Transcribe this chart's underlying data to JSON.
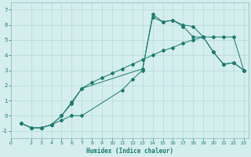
{
  "xlabel": "Humidex (Indice chaleur)",
  "bg_color": "#d4eded",
  "line_color": "#1a7a6e",
  "grid_color": "#b8d8d8",
  "spine_color": "#8ab8b8",
  "ylim": [
    -1.5,
    7.5
  ],
  "xlim": [
    0,
    23.5
  ],
  "yticks": [
    -1,
    0,
    1,
    2,
    3,
    4,
    5,
    6,
    7
  ],
  "xticks": [
    0,
    2,
    3,
    4,
    5,
    6,
    7,
    8,
    9,
    10,
    11,
    12,
    13,
    14,
    15,
    16,
    17,
    18,
    19,
    20,
    21,
    22,
    23
  ],
  "line1_x": [
    1,
    2,
    3,
    4,
    5,
    6,
    7,
    13,
    14,
    15,
    16,
    17,
    18,
    19,
    20,
    21,
    22,
    23
  ],
  "line1_y": [
    -0.5,
    -0.8,
    -0.8,
    -0.6,
    0.0,
    0.9,
    1.8,
    3.1,
    6.5,
    6.2,
    6.3,
    5.9,
    5.2,
    5.2,
    4.2,
    3.4,
    3.5,
    3.0
  ],
  "line2_x": [
    1,
    2,
    3,
    4,
    5,
    6,
    7,
    8,
    9,
    10,
    11,
    12,
    13,
    14,
    15,
    16,
    17,
    18,
    19,
    20,
    21,
    22,
    23
  ],
  "line2_y": [
    -0.5,
    -0.8,
    -0.8,
    -0.6,
    0.0,
    0.8,
    1.8,
    2.2,
    2.5,
    2.8,
    3.1,
    3.4,
    3.7,
    4.0,
    4.3,
    4.5,
    4.8,
    5.0,
    5.2,
    5.2,
    5.2,
    5.2,
    3.0
  ],
  "line3_x": [
    1,
    2,
    3,
    4,
    5,
    6,
    7,
    11,
    12,
    13,
    14,
    15,
    16,
    17,
    18,
    19,
    20,
    21,
    22,
    23
  ],
  "line3_y": [
    -0.5,
    -0.8,
    -0.8,
    -0.6,
    -0.3,
    0.0,
    0.0,
    1.7,
    2.4,
    3.0,
    6.7,
    6.2,
    6.3,
    6.0,
    5.9,
    5.2,
    4.2,
    3.4,
    3.5,
    3.0
  ]
}
